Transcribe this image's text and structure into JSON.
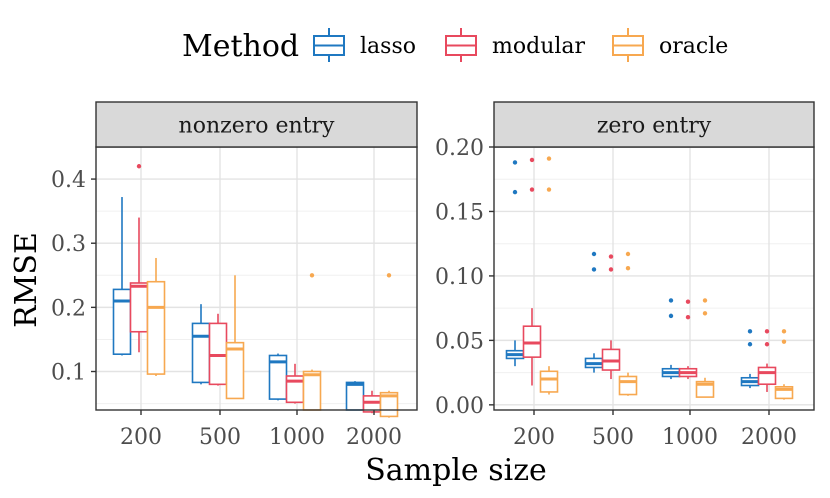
{
  "chart_data": {
    "type": "boxplot",
    "xlabel": "Sample size",
    "ylabel": "RMSE",
    "legend": {
      "title": "Method",
      "position": "top",
      "entries": [
        {
          "name": "lasso",
          "color": "#1f78c1"
        },
        {
          "name": "modular",
          "color": "#e8495e"
        },
        {
          "name": "oracle",
          "color": "#f7a850"
        }
      ]
    },
    "categories": [
      "200",
      "500",
      "1000",
      "2000"
    ],
    "panels": [
      {
        "title": "nonzero entry",
        "ylim": [
          0.04,
          0.45
        ],
        "yticks": [
          0.1,
          0.2,
          0.3,
          0.4
        ],
        "ytick_labels": [
          "0.1",
          "0.2",
          "0.3",
          "0.4"
        ],
        "series": [
          {
            "name": "lasso",
            "boxes": [
              {
                "min": 0.125,
                "q1": 0.127,
                "median": 0.21,
                "q3": 0.228,
                "max": 0.372,
                "outliers": []
              },
              {
                "min": 0.08,
                "q1": 0.083,
                "median": 0.155,
                "q3": 0.175,
                "max": 0.205,
                "outliers": []
              },
              {
                "min": 0.055,
                "q1": 0.057,
                "median": 0.115,
                "q3": 0.125,
                "max": 0.128,
                "outliers": []
              },
              {
                "min": 0.04,
                "q1": 0.04,
                "median": 0.08,
                "q3": 0.083,
                "max": 0.085,
                "outliers": []
              }
            ]
          },
          {
            "name": "modular",
            "boxes": [
              {
                "min": 0.13,
                "q1": 0.162,
                "median": 0.233,
                "q3": 0.238,
                "max": 0.34,
                "outliers": [
                  0.42
                ]
              },
              {
                "min": 0.078,
                "q1": 0.08,
                "median": 0.125,
                "q3": 0.175,
                "max": 0.19,
                "outliers": []
              },
              {
                "min": 0.05,
                "q1": 0.052,
                "median": 0.085,
                "q3": 0.093,
                "max": 0.112,
                "outliers": []
              },
              {
                "min": 0.035,
                "q1": 0.037,
                "median": 0.052,
                "q3": 0.062,
                "max": 0.07,
                "outliers": []
              }
            ]
          },
          {
            "name": "oracle",
            "boxes": [
              {
                "min": 0.093,
                "q1": 0.096,
                "median": 0.2,
                "q3": 0.24,
                "max": 0.277,
                "outliers": []
              },
              {
                "min": 0.058,
                "q1": 0.058,
                "median": 0.135,
                "q3": 0.145,
                "max": 0.25,
                "outliers": []
              },
              {
                "min": 0.04,
                "q1": 0.04,
                "median": 0.095,
                "q3": 0.1,
                "max": 0.103,
                "outliers": [
                  0.25
                ]
              },
              {
                "min": 0.028,
                "q1": 0.03,
                "median": 0.062,
                "q3": 0.067,
                "max": 0.07,
                "outliers": [
                  0.25
                ]
              }
            ]
          }
        ]
      },
      {
        "title": "zero entry",
        "ylim": [
          -0.004,
          0.2
        ],
        "yticks": [
          0.0,
          0.05,
          0.1,
          0.15,
          0.2
        ],
        "ytick_labels": [
          "0.00",
          "0.05",
          "0.10",
          "0.15",
          "0.20"
        ],
        "series": [
          {
            "name": "lasso",
            "boxes": [
              {
                "min": 0.03,
                "q1": 0.036,
                "median": 0.039,
                "q3": 0.042,
                "max": 0.05,
                "outliers": [
                  0.165,
                  0.188
                ]
              },
              {
                "min": 0.025,
                "q1": 0.029,
                "median": 0.032,
                "q3": 0.036,
                "max": 0.04,
                "outliers": [
                  0.105,
                  0.117
                ]
              },
              {
                "min": 0.02,
                "q1": 0.022,
                "median": 0.025,
                "q3": 0.028,
                "max": 0.031,
                "outliers": [
                  0.069,
                  0.081
                ]
              },
              {
                "min": 0.013,
                "q1": 0.015,
                "median": 0.018,
                "q3": 0.021,
                "max": 0.024,
                "outliers": [
                  0.047,
                  0.057
                ]
              }
            ]
          },
          {
            "name": "modular",
            "boxes": [
              {
                "min": 0.015,
                "q1": 0.037,
                "median": 0.048,
                "q3": 0.061,
                "max": 0.075,
                "outliers": [
                  0.167,
                  0.19
                ]
              },
              {
                "min": 0.02,
                "q1": 0.027,
                "median": 0.034,
                "q3": 0.043,
                "max": 0.05,
                "outliers": [
                  0.105,
                  0.115
                ]
              },
              {
                "min": 0.02,
                "q1": 0.022,
                "median": 0.025,
                "q3": 0.028,
                "max": 0.03,
                "outliers": [
                  0.068,
                  0.08
                ]
              },
              {
                "min": 0.01,
                "q1": 0.016,
                "median": 0.025,
                "q3": 0.029,
                "max": 0.032,
                "outliers": [
                  0.047,
                  0.057
                ]
              }
            ]
          },
          {
            "name": "oracle",
            "boxes": [
              {
                "min": 0.008,
                "q1": 0.01,
                "median": 0.02,
                "q3": 0.026,
                "max": 0.03,
                "outliers": [
                  0.167,
                  0.191
                ]
              },
              {
                "min": 0.007,
                "q1": 0.008,
                "median": 0.018,
                "q3": 0.022,
                "max": 0.025,
                "outliers": [
                  0.106,
                  0.117
                ]
              },
              {
                "min": 0.006,
                "q1": 0.006,
                "median": 0.016,
                "q3": 0.018,
                "max": 0.021,
                "outliers": [
                  0.071,
                  0.081
                ]
              },
              {
                "min": 0.004,
                "q1": 0.005,
                "median": 0.012,
                "q3": 0.014,
                "max": 0.016,
                "outliers": [
                  0.049,
                  0.057
                ]
              }
            ]
          }
        ]
      }
    ]
  }
}
